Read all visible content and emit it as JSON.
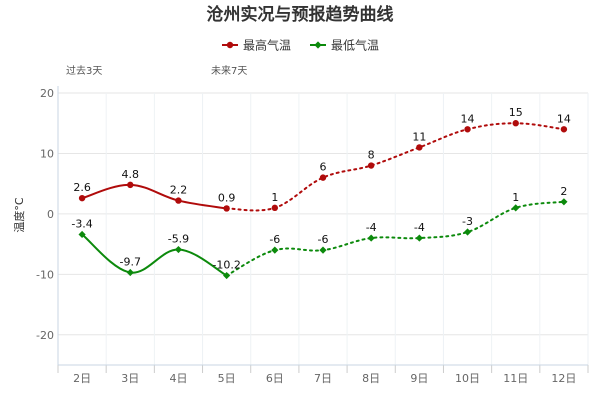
{
  "chart_data": {
    "type": "line",
    "title": "沧州实况与预报趋势曲线",
    "ylabel": "温度°C",
    "xlabel": "",
    "ylim": [
      -25,
      20
    ],
    "yticks": [
      20,
      10,
      0,
      -10,
      -20
    ],
    "categories": [
      "2日",
      "3日",
      "4日",
      "5日",
      "6日",
      "7日",
      "8日",
      "9日",
      "10日",
      "11日",
      "12日"
    ],
    "annotations": {
      "past": "过去3天",
      "future": "未来7天"
    },
    "observed_count": 4,
    "legend_position": "top-center",
    "grid": true,
    "series": [
      {
        "name": "最高气温",
        "color": "#b00b0b",
        "marker": "circle",
        "values": [
          2.6,
          4.8,
          2.2,
          0.9,
          1,
          6,
          8,
          11,
          14,
          15,
          14
        ],
        "labels": [
          "2.6",
          "4.8",
          "2.2",
          "0.9",
          "1",
          "6",
          "8",
          "11",
          "14",
          "15",
          "14"
        ]
      },
      {
        "name": "最低气温",
        "color": "#0c8a0c",
        "marker": "diamond",
        "values": [
          -3.4,
          -9.7,
          -5.9,
          -10.2,
          -6,
          -6,
          -4,
          -4,
          -3,
          1,
          2
        ],
        "labels": [
          "-3.4",
          "-9.7",
          "-5.9",
          "-10.2",
          "-6",
          "-6",
          "-4",
          "-4",
          "-3",
          "1",
          "2"
        ]
      }
    ]
  }
}
